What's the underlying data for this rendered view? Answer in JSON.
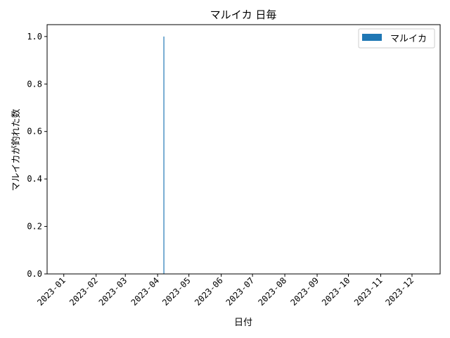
{
  "chart_data": {
    "type": "bar",
    "title": "マルイカ 日毎",
    "xlabel": "日付",
    "ylabel": "マルイカが釣れた数",
    "legend": {
      "placement": "top-right",
      "entries": [
        "マルイカ"
      ]
    },
    "grid": false,
    "color": "#1f77b4",
    "x_range": [
      "2022-12-16",
      "2023-12-28"
    ],
    "ylim": [
      0,
      1.05
    ],
    "x_ticks": [
      "2023-01",
      "2023-02",
      "2023-03",
      "2023-04",
      "2023-05",
      "2023-06",
      "2023-07",
      "2023-08",
      "2023-09",
      "2023-10",
      "2023-11",
      "2023-12"
    ],
    "y_ticks": [
      "0.0",
      "0.2",
      "0.4",
      "0.6",
      "0.8",
      "1.0"
    ],
    "series": [
      {
        "name": "マルイカ",
        "points": [
          {
            "x": "2023-04-07",
            "y": 1
          }
        ]
      }
    ]
  }
}
